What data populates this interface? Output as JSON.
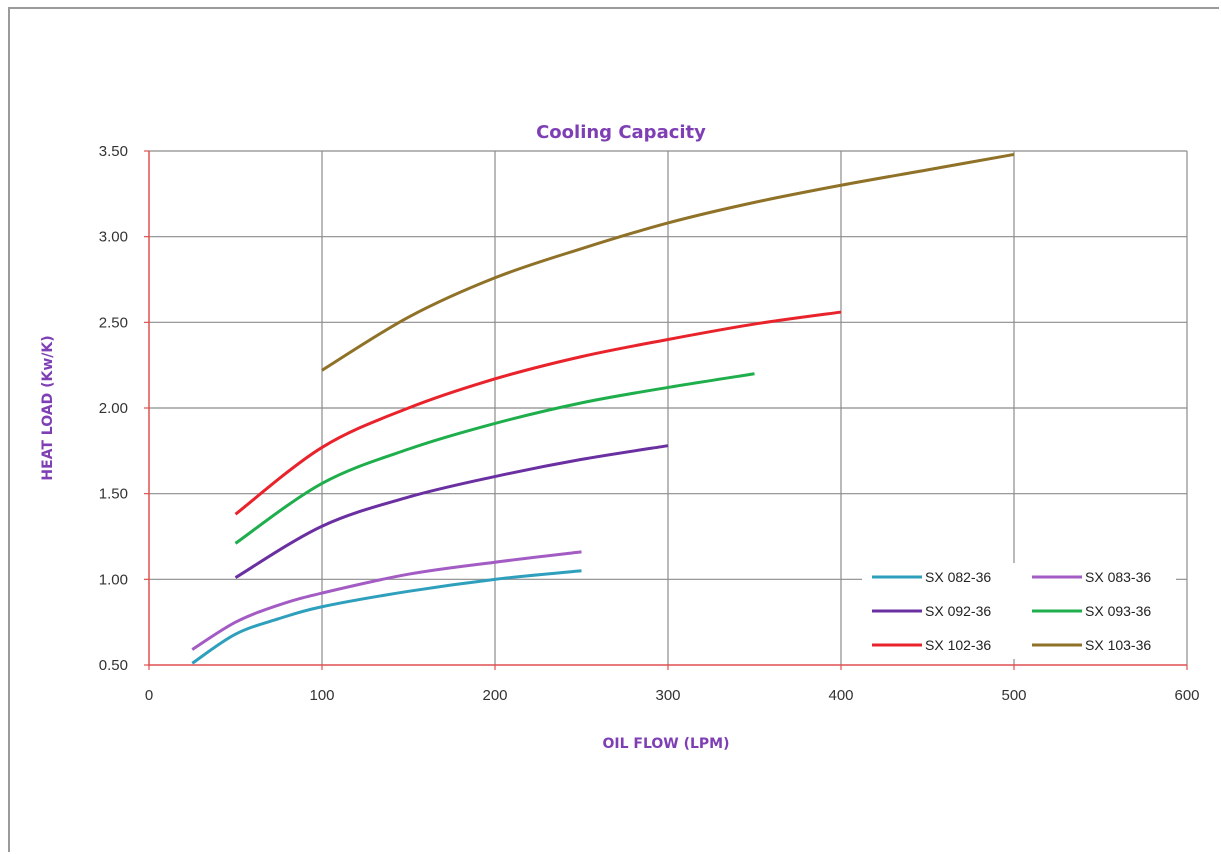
{
  "chart_data": {
    "type": "line",
    "title": "Cooling Capacity",
    "xlabel": "OIL FLOW (LPM)",
    "ylabel": "HEAT  LOAD (Kw/K)",
    "xlim": [
      0,
      600
    ],
    "ylim": [
      0.5,
      3.5
    ],
    "xticks": [
      0,
      100,
      200,
      300,
      400,
      500,
      600
    ],
    "xtick_labels": [
      "0",
      "100",
      "200",
      "300",
      "400",
      "500",
      "600"
    ],
    "yticks": [
      0.5,
      1.0,
      1.5,
      2.0,
      2.5,
      3.0,
      3.5
    ],
    "ytick_labels": [
      "0.50",
      "1.00",
      "1.50",
      "2.00",
      "2.50",
      "3.00",
      "3.50"
    ],
    "grid": true,
    "legend_position": "bottom-right",
    "series": [
      {
        "name": "SX 082-36",
        "color": "#2e9fbd",
        "x": [
          25,
          50,
          75,
          100,
          150,
          200,
          250
        ],
        "y": [
          0.51,
          0.68,
          0.77,
          0.84,
          0.93,
          1.0,
          1.05
        ]
      },
      {
        "name": "SX 083-36",
        "color": "#a35cc4",
        "x": [
          25,
          50,
          75,
          100,
          150,
          200,
          250
        ],
        "y": [
          0.59,
          0.75,
          0.85,
          0.92,
          1.03,
          1.1,
          1.16
        ]
      },
      {
        "name": "SX 092-36",
        "color": "#6a2fa0",
        "x": [
          50,
          100,
          150,
          200,
          250,
          300
        ],
        "y": [
          1.01,
          1.31,
          1.48,
          1.6,
          1.7,
          1.78
        ]
      },
      {
        "name": "SX 093-36",
        "color": "#1fae4c",
        "x": [
          50,
          100,
          150,
          200,
          250,
          300,
          350
        ],
        "y": [
          1.21,
          1.56,
          1.76,
          1.91,
          2.03,
          2.12,
          2.2
        ]
      },
      {
        "name": "SX 102-36",
        "color": "#e8232b",
        "x": [
          50,
          100,
          150,
          200,
          250,
          300,
          350,
          400
        ],
        "y": [
          1.38,
          1.77,
          2.0,
          2.17,
          2.3,
          2.4,
          2.49,
          2.56
        ]
      },
      {
        "name": "SX 103-36",
        "color": "#8f7228",
        "x": [
          100,
          150,
          200,
          250,
          300,
          350,
          400,
          450,
          500
        ],
        "y": [
          2.22,
          2.53,
          2.76,
          2.93,
          3.08,
          3.2,
          3.3,
          3.39,
          3.48
        ]
      }
    ]
  },
  "colors": {
    "axis_line": "#e05050",
    "grid_line": "#8c8c8c",
    "title": "#7f3fb4"
  }
}
